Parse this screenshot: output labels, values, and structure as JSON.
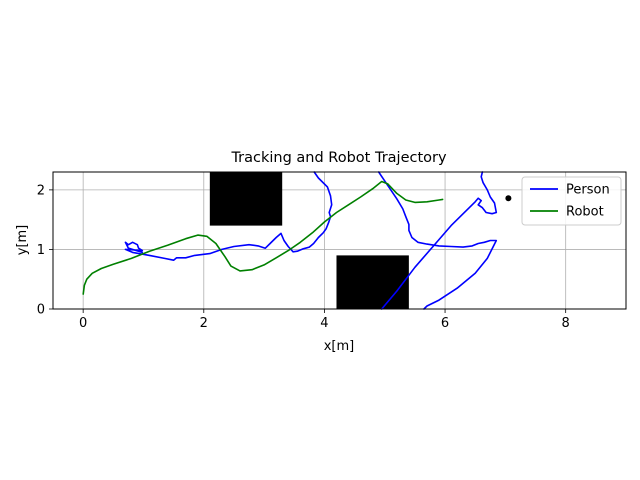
{
  "chart_data": {
    "type": "line",
    "title": "Tracking and Robot Trajectory",
    "xlabel": "x[m]",
    "ylabel": "y[m]",
    "xlim": [
      -0.5,
      9.0
    ],
    "ylim": [
      0,
      2.3
    ],
    "x_ticks": [
      0,
      2,
      4,
      6,
      8
    ],
    "y_ticks": [
      0,
      1,
      2
    ],
    "grid": true,
    "legend_position": "upper right",
    "obstacles": [
      {
        "x": [
          2.1,
          3.3
        ],
        "y": [
          1.4,
          2.3
        ],
        "color": "#000000"
      },
      {
        "x": [
          4.2,
          5.4
        ],
        "y": [
          0.0,
          0.9
        ],
        "color": "#000000"
      }
    ],
    "markers": [
      {
        "x": 7.05,
        "y": 1.86,
        "color": "#000000"
      }
    ],
    "series": [
      {
        "name": "Person",
        "color": "#0000ff",
        "segments": [
          [
            [
              0.98,
              0.95
            ],
            [
              0.75,
              1.02
            ],
            [
              0.7,
              1.12
            ],
            [
              0.75,
              1.08
            ],
            [
              0.82,
              1.12
            ],
            [
              0.9,
              1.08
            ],
            [
              0.92,
              1.02
            ],
            [
              0.98,
              0.98
            ],
            [
              0.85,
              0.99
            ],
            [
              0.7,
              1.0
            ],
            [
              0.82,
              0.95
            ],
            [
              1.1,
              0.9
            ],
            [
              1.35,
              0.85
            ],
            [
              1.5,
              0.82
            ],
            [
              1.55,
              0.86
            ],
            [
              1.7,
              0.86
            ],
            [
              1.85,
              0.9
            ],
            [
              2.1,
              0.93
            ],
            [
              2.3,
              1.0
            ],
            [
              2.5,
              1.05
            ],
            [
              2.75,
              1.08
            ],
            [
              2.9,
              1.06
            ],
            [
              3.02,
              1.02
            ],
            [
              3.1,
              1.1
            ],
            [
              3.2,
              1.2
            ],
            [
              3.28,
              1.27
            ],
            [
              3.33,
              1.15
            ],
            [
              3.4,
              1.05
            ],
            [
              3.48,
              0.96
            ],
            [
              3.55,
              0.97
            ],
            [
              3.65,
              1.01
            ],
            [
              3.75,
              1.04
            ],
            [
              3.82,
              1.1
            ],
            [
              3.9,
              1.2
            ],
            [
              3.98,
              1.28
            ],
            [
              4.03,
              1.35
            ],
            [
              4.07,
              1.45
            ],
            [
              4.1,
              1.55
            ],
            [
              4.08,
              1.62
            ],
            [
              4.12,
              1.75
            ],
            [
              4.1,
              1.9
            ],
            [
              4.05,
              2.05
            ],
            [
              3.9,
              2.2
            ],
            [
              3.83,
              2.3
            ]
          ],
          [
            [
              4.9,
              2.3
            ],
            [
              5.0,
              2.15
            ],
            [
              5.1,
              2.0
            ],
            [
              5.2,
              1.85
            ],
            [
              5.3,
              1.68
            ],
            [
              5.35,
              1.55
            ],
            [
              5.4,
              1.42
            ],
            [
              5.4,
              1.32
            ],
            [
              5.45,
              1.2
            ],
            [
              5.55,
              1.12
            ],
            [
              5.7,
              1.09
            ],
            [
              5.9,
              1.06
            ],
            [
              6.1,
              1.05
            ],
            [
              6.3,
              1.04
            ],
            [
              6.45,
              1.06
            ],
            [
              6.55,
              1.1
            ],
            [
              6.65,
              1.12
            ],
            [
              6.75,
              1.15
            ],
            [
              6.85,
              1.15
            ],
            [
              6.7,
              0.85
            ],
            [
              6.5,
              0.6
            ],
            [
              6.2,
              0.35
            ],
            [
              5.9,
              0.15
            ],
            [
              5.7,
              0.05
            ],
            [
              5.65,
              0.0
            ]
          ],
          [
            [
              4.95,
              0.0
            ],
            [
              5.2,
              0.3
            ],
            [
              5.5,
              0.7
            ],
            [
              5.8,
              1.05
            ],
            [
              6.1,
              1.4
            ],
            [
              6.35,
              1.65
            ],
            [
              6.5,
              1.8
            ],
            [
              6.55,
              1.86
            ],
            [
              6.6,
              1.82
            ],
            [
              6.55,
              1.75
            ],
            [
              6.62,
              1.7
            ],
            [
              6.68,
              1.62
            ],
            [
              6.78,
              1.6
            ],
            [
              6.85,
              1.62
            ],
            [
              6.82,
              1.78
            ],
            [
              6.75,
              1.88
            ],
            [
              6.7,
              2.0
            ],
            [
              6.63,
              2.12
            ],
            [
              6.6,
              2.22
            ],
            [
              6.62,
              2.3
            ]
          ]
        ]
      },
      {
        "name": "Robot",
        "color": "#008000",
        "segments": [
          [
            [
              0.0,
              0.25
            ],
            [
              0.02,
              0.4
            ],
            [
              0.06,
              0.5
            ],
            [
              0.15,
              0.6
            ],
            [
              0.3,
              0.68
            ],
            [
              0.5,
              0.75
            ],
            [
              0.8,
              0.85
            ],
            [
              1.1,
              0.97
            ],
            [
              1.4,
              1.07
            ],
            [
              1.7,
              1.18
            ],
            [
              1.9,
              1.24
            ],
            [
              2.05,
              1.22
            ],
            [
              2.2,
              1.1
            ],
            [
              2.35,
              0.88
            ],
            [
              2.45,
              0.72
            ],
            [
              2.6,
              0.64
            ],
            [
              2.8,
              0.66
            ],
            [
              3.0,
              0.74
            ],
            [
              3.2,
              0.86
            ],
            [
              3.4,
              0.98
            ],
            [
              3.6,
              1.12
            ],
            [
              3.8,
              1.28
            ],
            [
              4.0,
              1.46
            ],
            [
              4.2,
              1.62
            ],
            [
              4.4,
              1.75
            ],
            [
              4.6,
              1.88
            ],
            [
              4.8,
              2.02
            ],
            [
              4.95,
              2.14
            ],
            [
              5.05,
              2.1
            ],
            [
              5.2,
              1.94
            ],
            [
              5.35,
              1.83
            ],
            [
              5.5,
              1.79
            ],
            [
              5.7,
              1.8
            ],
            [
              5.9,
              1.83
            ],
            [
              5.96,
              1.84
            ]
          ]
        ]
      }
    ]
  }
}
